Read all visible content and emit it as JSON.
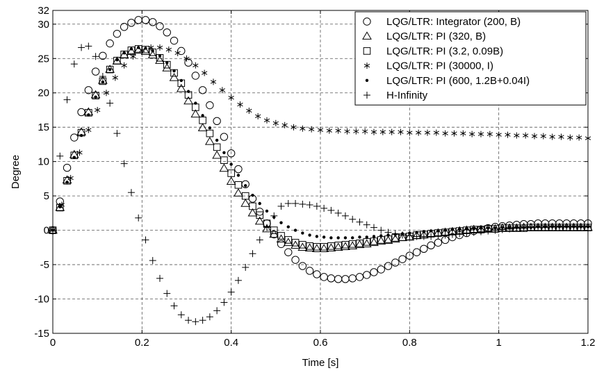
{
  "chart_data": {
    "type": "scatter",
    "title": "",
    "xlabel": "Time [s]",
    "ylabel": "Degree",
    "xlim": [
      0,
      1.2
    ],
    "ylim": [
      -15,
      32
    ],
    "grid": true,
    "grid_style": "dashed",
    "legend_position": "top-right",
    "x_ticks": [
      0,
      0.2,
      0.4,
      0.6,
      0.8,
      1,
      1.2
    ],
    "x_tick_labels": [
      "0",
      "0.2",
      "0.4",
      "0.6",
      "0.8",
      "1",
      "1.2"
    ],
    "y_ticks": [
      -15,
      -10,
      -5,
      0,
      5,
      10,
      15,
      20,
      25,
      30,
      32
    ],
    "y_tick_labels": [
      "-15",
      "-10",
      "-5",
      "0",
      "5",
      "10",
      "15",
      "20",
      "25",
      "30",
      "32"
    ],
    "series": [
      {
        "name": "LQG/LTR: Integrator (200, B)",
        "marker": "circle",
        "x": [
          0,
          0.016,
          0.032,
          0.048,
          0.064,
          0.08,
          0.096,
          0.112,
          0.128,
          0.144,
          0.16,
          0.176,
          0.192,
          0.208,
          0.224,
          0.24,
          0.256,
          0.272,
          0.288,
          0.304,
          0.32,
          0.336,
          0.352,
          0.368,
          0.384,
          0.4,
          0.416,
          0.432,
          0.448,
          0.464,
          0.48,
          0.496,
          0.512,
          0.528,
          0.544,
          0.56,
          0.576,
          0.592,
          0.608,
          0.624,
          0.64,
          0.656,
          0.672,
          0.688,
          0.704,
          0.72,
          0.736,
          0.752,
          0.768,
          0.784,
          0.8,
          0.816,
          0.832,
          0.848,
          0.864,
          0.88,
          0.896,
          0.912,
          0.928,
          0.944,
          0.96,
          0.976,
          0.992,
          1.008,
          1.024,
          1.04,
          1.056,
          1.072,
          1.088,
          1.104,
          1.12,
          1.136,
          1.152,
          1.168,
          1.184,
          1.2
        ],
        "y": [
          0,
          4.2,
          9.1,
          13.5,
          17.2,
          20.4,
          23.1,
          25.4,
          27.2,
          28.6,
          29.6,
          30.2,
          30.6,
          30.6,
          30.3,
          29.7,
          28.8,
          27.6,
          26.1,
          24.4,
          22.5,
          20.4,
          18.2,
          15.9,
          13.6,
          11.2,
          8.9,
          6.7,
          4.6,
          2.7,
          1.0,
          -0.6,
          -2.0,
          -3.2,
          -4.3,
          -5.2,
          -5.9,
          -6.4,
          -6.8,
          -7.0,
          -7.1,
          -7.1,
          -7.0,
          -6.8,
          -6.5,
          -6.1,
          -5.7,
          -5.2,
          -4.7,
          -4.2,
          -3.7,
          -3.2,
          -2.7,
          -2.2,
          -1.8,
          -1.4,
          -1.0,
          -0.7,
          -0.4,
          -0.1,
          0.1,
          0.3,
          0.5,
          0.6,
          0.7,
          0.8,
          0.9,
          0.9,
          1.0,
          1.0,
          1.0,
          1.0,
          1.0,
          1.0,
          1.0,
          1.0
        ]
      },
      {
        "name": "LQG/LTR: PI (320, B)",
        "marker": "triangle",
        "x": [
          0,
          0.016,
          0.032,
          0.048,
          0.064,
          0.08,
          0.096,
          0.112,
          0.128,
          0.144,
          0.16,
          0.176,
          0.192,
          0.208,
          0.224,
          0.24,
          0.256,
          0.272,
          0.288,
          0.304,
          0.32,
          0.336,
          0.352,
          0.368,
          0.384,
          0.4,
          0.416,
          0.432,
          0.448,
          0.464,
          0.48,
          0.496,
          0.512,
          0.528,
          0.544,
          0.56,
          0.576,
          0.592,
          0.608,
          0.624,
          0.64,
          0.656,
          0.672,
          0.688,
          0.704,
          0.72,
          0.736,
          0.752,
          0.768,
          0.784,
          0.8,
          0.816,
          0.832,
          0.848,
          0.864,
          0.88,
          0.896,
          0.912,
          0.928,
          0.944,
          0.96,
          0.976,
          0.992,
          1.008,
          1.024,
          1.04,
          1.056,
          1.072,
          1.088,
          1.104,
          1.12,
          1.136,
          1.152,
          1.168,
          1.184,
          1.2
        ],
        "y": [
          0,
          3.3,
          7.3,
          11.0,
          14.3,
          17.2,
          19.7,
          21.8,
          23.4,
          24.6,
          25.5,
          26.0,
          26.2,
          26.0,
          25.5,
          24.7,
          23.6,
          22.2,
          20.6,
          18.8,
          16.9,
          14.9,
          12.9,
          10.9,
          9.0,
          7.1,
          5.4,
          3.9,
          2.5,
          1.3,
          0.2,
          -0.6,
          -1.3,
          -1.8,
          -2.2,
          -2.5,
          -2.6,
          -2.7,
          -2.7,
          -2.6,
          -2.5,
          -2.4,
          -2.3,
          -2.1,
          -2.0,
          -1.8,
          -1.6,
          -1.5,
          -1.3,
          -1.1,
          -1.0,
          -0.8,
          -0.7,
          -0.5,
          -0.4,
          -0.3,
          -0.2,
          -0.1,
          0,
          0.1,
          0.1,
          0.2,
          0.2,
          0.3,
          0.3,
          0.3,
          0.4,
          0.4,
          0.4,
          0.4,
          0.4,
          0.4,
          0.4,
          0.4,
          0.4,
          0.4
        ]
      },
      {
        "name": "LQG/LTR: PI (3.2, 0.09B)",
        "marker": "square",
        "x": [
          0,
          0.016,
          0.032,
          0.048,
          0.064,
          0.08,
          0.096,
          0.112,
          0.128,
          0.144,
          0.16,
          0.176,
          0.192,
          0.208,
          0.224,
          0.24,
          0.256,
          0.272,
          0.288,
          0.304,
          0.32,
          0.336,
          0.352,
          0.368,
          0.384,
          0.4,
          0.416,
          0.432,
          0.448,
          0.464,
          0.48,
          0.496,
          0.512,
          0.528,
          0.544,
          0.56,
          0.576,
          0.592,
          0.608,
          0.624,
          0.64,
          0.656,
          0.672,
          0.688,
          0.704,
          0.72,
          0.736,
          0.752,
          0.768,
          0.784,
          0.8,
          0.816,
          0.832,
          0.848,
          0.864,
          0.88,
          0.896,
          0.912,
          0.928,
          0.944,
          0.96,
          0.976,
          0.992,
          1.008,
          1.024,
          1.04,
          1.056,
          1.072,
          1.088,
          1.104,
          1.12,
          1.136,
          1.152,
          1.168,
          1.184,
          1.2
        ],
        "y": [
          0,
          3.3,
          7.2,
          10.9,
          14.2,
          17.1,
          19.6,
          21.7,
          23.4,
          24.7,
          25.6,
          26.2,
          26.4,
          26.3,
          25.9,
          25.1,
          24.1,
          22.9,
          21.4,
          19.7,
          17.9,
          16.0,
          14.1,
          12.1,
          10.2,
          8.3,
          6.6,
          5.0,
          3.5,
          2.2,
          1.0,
          0,
          -0.8,
          -1.4,
          -1.8,
          -2.1,
          -2.3,
          -2.4,
          -2.4,
          -2.3,
          -2.2,
          -2.1,
          -2.0,
          -1.9,
          -1.7,
          -1.6,
          -1.4,
          -1.3,
          -1.1,
          -1.0,
          -0.9,
          -0.7,
          -0.6,
          -0.5,
          -0.4,
          -0.3,
          -0.2,
          -0.1,
          0,
          0.1,
          0.1,
          0.2,
          0.2,
          0.3,
          0.3,
          0.3,
          0.3,
          0.4,
          0.4,
          0.4,
          0.4,
          0.4,
          0.4,
          0.4,
          0.4,
          0.4
        ]
      },
      {
        "name": "LQG/LTR: PI (30000, I)",
        "marker": "asterisk",
        "x": [
          0,
          0.02,
          0.04,
          0.06,
          0.08,
          0.1,
          0.12,
          0.14,
          0.16,
          0.18,
          0.2,
          0.22,
          0.24,
          0.26,
          0.28,
          0.3,
          0.32,
          0.34,
          0.36,
          0.38,
          0.4,
          0.42,
          0.44,
          0.46,
          0.48,
          0.5,
          0.52,
          0.54,
          0.56,
          0.58,
          0.6,
          0.62,
          0.64,
          0.66,
          0.68,
          0.7,
          0.72,
          0.74,
          0.76,
          0.78,
          0.8,
          0.82,
          0.84,
          0.86,
          0.88,
          0.9,
          0.92,
          0.94,
          0.96,
          0.98,
          1,
          1.02,
          1.04,
          1.06,
          1.08,
          1.1,
          1.12,
          1.14,
          1.16,
          1.18,
          1.2
        ],
        "y": [
          0,
          3.7,
          7.6,
          11.3,
          14.6,
          17.5,
          20.0,
          22.2,
          24.0,
          25.3,
          26.2,
          26.6,
          26.6,
          26.3,
          25.8,
          25.0,
          24.0,
          22.9,
          21.6,
          20.4,
          19.3,
          18.3,
          17.4,
          16.6,
          16.0,
          15.6,
          15.3,
          15.0,
          14.8,
          14.7,
          14.6,
          14.5,
          14.5,
          14.4,
          14.4,
          14.4,
          14.3,
          14.3,
          14.3,
          14.3,
          14.2,
          14.2,
          14.2,
          14.2,
          14.1,
          14.1,
          14.1,
          14.0,
          14.0,
          14.0,
          13.9,
          13.9,
          13.8,
          13.8,
          13.7,
          13.7,
          13.6,
          13.6,
          13.5,
          13.5,
          13.4
        ]
      },
      {
        "name": "LQG/LTR: PI (600, 1.2B+0.04I)",
        "marker": "dot",
        "x": [
          0,
          0.016,
          0.032,
          0.048,
          0.064,
          0.08,
          0.096,
          0.112,
          0.128,
          0.144,
          0.16,
          0.176,
          0.192,
          0.208,
          0.224,
          0.24,
          0.256,
          0.272,
          0.288,
          0.304,
          0.32,
          0.336,
          0.352,
          0.368,
          0.384,
          0.4,
          0.416,
          0.432,
          0.448,
          0.464,
          0.48,
          0.496,
          0.512,
          0.528,
          0.544,
          0.56,
          0.576,
          0.592,
          0.608,
          0.624,
          0.64,
          0.656,
          0.672,
          0.688,
          0.704,
          0.72,
          0.736,
          0.752,
          0.768,
          0.784,
          0.8,
          0.816,
          0.832,
          0.848,
          0.864,
          0.88,
          0.896,
          0.912,
          0.928,
          0.944,
          0.96,
          0.976,
          0.992,
          1.008,
          1.024,
          1.04,
          1.056,
          1.072,
          1.088,
          1.104,
          1.12,
          1.136,
          1.152,
          1.168,
          1.184,
          1.2
        ],
        "y": [
          0,
          3.4,
          7.0,
          10.6,
          13.8,
          16.8,
          19.4,
          21.6,
          23.4,
          24.8,
          25.8,
          26.4,
          26.6,
          26.5,
          26.1,
          25.4,
          24.4,
          23.2,
          21.8,
          20.2,
          18.5,
          16.7,
          14.9,
          13.1,
          11.3,
          9.6,
          8.0,
          6.5,
          5.1,
          3.9,
          2.8,
          1.9,
          1.1,
          0.5,
          0,
          -0.4,
          -0.7,
          -0.9,
          -1.0,
          -1.1,
          -1.1,
          -1.1,
          -1.1,
          -1.0,
          -1.0,
          -0.9,
          -0.8,
          -0.7,
          -0.6,
          -0.5,
          -0.4,
          -0.3,
          -0.2,
          -0.1,
          -0.1,
          0,
          0.1,
          0.1,
          0.2,
          0.2,
          0.3,
          0.3,
          0.3,
          0.4,
          0.4,
          0.4,
          0.4,
          0.4,
          0.5,
          0.5,
          0.5,
          0.5,
          0.5,
          0.5,
          0.5,
          0.5
        ]
      },
      {
        "name": "H-Infinity",
        "marker": "plus",
        "x": [
          0,
          0.016,
          0.032,
          0.048,
          0.064,
          0.08,
          0.096,
          0.112,
          0.128,
          0.144,
          0.16,
          0.176,
          0.192,
          0.208,
          0.224,
          0.24,
          0.256,
          0.272,
          0.288,
          0.304,
          0.32,
          0.336,
          0.352,
          0.368,
          0.384,
          0.4,
          0.416,
          0.432,
          0.448,
          0.464,
          0.48,
          0.496,
          0.512,
          0.528,
          0.544,
          0.56,
          0.576,
          0.592,
          0.608,
          0.624,
          0.64,
          0.656,
          0.672,
          0.688,
          0.704,
          0.72,
          0.736,
          0.752,
          0.768,
          0.784,
          0.8,
          0.816,
          0.832,
          0.848,
          0.864,
          0.88,
          0.896,
          0.912,
          0.928,
          0.944,
          0.96,
          0.976,
          0.992,
          1.008,
          1.024,
          1.04,
          1.056,
          1.072,
          1.088,
          1.104,
          1.12,
          1.136,
          1.152,
          1.168,
          1.184,
          1.2
        ],
        "y": [
          0,
          10.8,
          19.0,
          24.2,
          26.6,
          26.8,
          25.3,
          22.4,
          18.5,
          14.1,
          9.7,
          5.5,
          1.8,
          -1.4,
          -4.4,
          -7.0,
          -9.2,
          -11.0,
          -12.3,
          -13.1,
          -13.3,
          -13.1,
          -12.6,
          -11.7,
          -10.5,
          -9.0,
          -7.3,
          -5.4,
          -3.4,
          -1.4,
          0.4,
          2.1,
          3.5,
          3.9,
          3.9,
          3.8,
          3.7,
          3.5,
          3.2,
          2.9,
          2.5,
          2.1,
          1.6,
          1.2,
          0.8,
          0.4,
          0,
          -0.3,
          -0.5,
          -0.7,
          -0.8,
          -0.9,
          -0.9,
          -0.9,
          -0.8,
          -0.7,
          -0.6,
          -0.5,
          -0.4,
          -0.3,
          -0.2,
          -0.1,
          0,
          0.1,
          0.2,
          0.3,
          0.3,
          0.4,
          0.4,
          0.4,
          0.5,
          0.5,
          0.5,
          0.5,
          0.5,
          0.5
        ]
      }
    ]
  }
}
